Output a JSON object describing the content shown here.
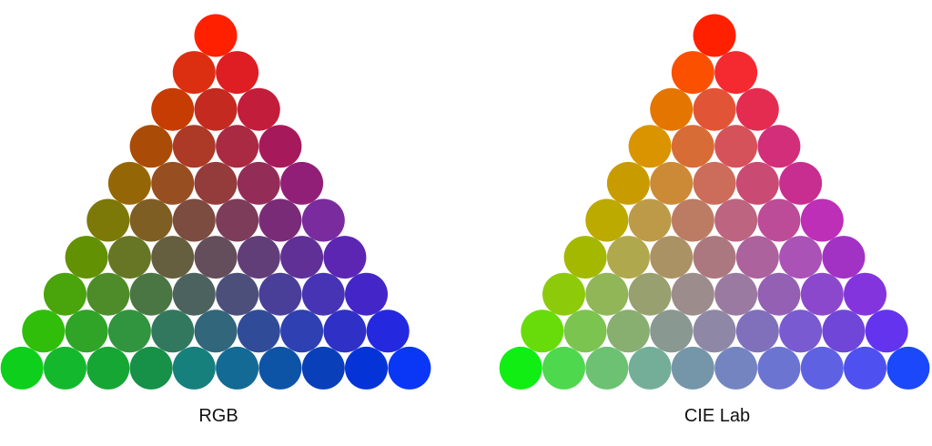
{
  "panels": [
    {
      "id": "rgb",
      "caption": "RGB",
      "rows": [
        [
          "#ff2000"
        ],
        [
          "#dc2e10",
          "#de1e22"
        ],
        [
          "#c63c03",
          "#c42a20",
          "#c21d3a"
        ],
        [
          "#aa4c08",
          "#ac3a26",
          "#a92a42",
          "#a61a5c"
        ],
        [
          "#956605",
          "#974e20",
          "#943b3b",
          "#932d58",
          "#911f78"
        ],
        [
          "#7c7908",
          "#7f5e24",
          "#7c4c40",
          "#7c3c5a",
          "#7a2b78",
          "#7a2c9e"
        ],
        [
          "#629104",
          "#667624",
          "#655f3f",
          "#644e5b",
          "#623e78",
          "#603096",
          "#5c26b3"
        ],
        [
          "#4aa40c",
          "#4d8c28",
          "#4a7644",
          "#4c625e",
          "#4b4f7a",
          "#493e98",
          "#4634b4",
          "#4426c8"
        ],
        [
          "#30be0a",
          "#2fa427",
          "#31943f",
          "#32785e",
          "#31667b",
          "#304c98",
          "#2f40b2",
          "#2e30c6",
          "#2428de"
        ],
        [
          "#0ecf1c",
          "#14b82c",
          "#16a634",
          "#179048",
          "#16807c",
          "#136a94",
          "#0d54a6",
          "#0940ba",
          "#0434d8",
          "#0a36f6"
        ]
      ]
    },
    {
      "id": "lab",
      "caption": "CIE Lab",
      "rows": [
        [
          "#ff2000"
        ],
        [
          "#fa5000",
          "#f42a30"
        ],
        [
          "#e47600",
          "#e25436",
          "#e42c50"
        ],
        [
          "#da9400",
          "#d86c36",
          "#d6525a",
          "#d22e7a"
        ],
        [
          "#c89c00",
          "#cc8a36",
          "#cb6d5a",
          "#c94b74",
          "#c82e90"
        ],
        [
          "#bcaa00",
          "#bc9a48",
          "#bc7c64",
          "#bc6480",
          "#bd4c98",
          "#bc2fb6"
        ],
        [
          "#a4b800",
          "#b0a84c",
          "#ab9264",
          "#ac7880",
          "#ac629c",
          "#aa52b6",
          "#a232c4"
        ],
        [
          "#8cca0a",
          "#90b658",
          "#98a070",
          "#9c8c8c",
          "#9a7aa0",
          "#9460b4",
          "#8c48cc",
          "#8434dc"
        ],
        [
          "#68dc0a",
          "#7cc450",
          "#88ae70",
          "#899890",
          "#8e88a6",
          "#8070bc",
          "#7a5ad0",
          "#7046d8",
          "#6433ee"
        ],
        [
          "#10ee14",
          "#4ed84e",
          "#6cc272",
          "#74ae98",
          "#7496a8",
          "#7484c0",
          "#6c74d2",
          "#5e62e2",
          "#4e50f0",
          "#1a48fa"
        ]
      ]
    }
  ]
}
